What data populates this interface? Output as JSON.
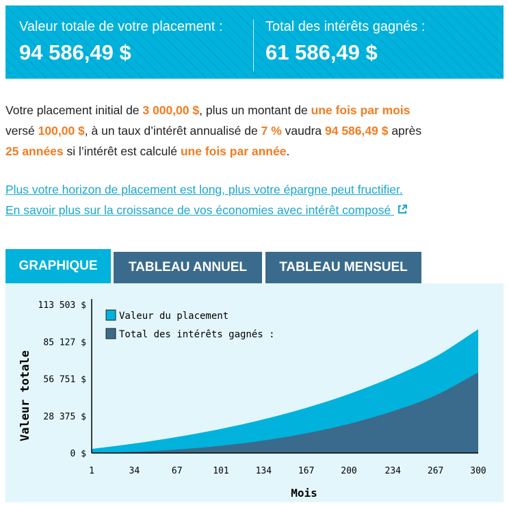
{
  "summary": {
    "total_label": "Valeur totale de votre placement :",
    "total_value": "94 586,49 $",
    "interest_label": "Total des intérêts gagnés :",
    "interest_value": "61 586,49 $"
  },
  "description": {
    "t1": "Votre placement initial de ",
    "initial": "3 000,00 $",
    "t2": ", plus un montant de ",
    "frequency": "une fois par mois",
    "t3": " versé ",
    "deposit": "100,00 $",
    "t4": ", à un taux d’intérêt annualisé de ",
    "rate": "7 %",
    "t5": " vaudra ",
    "final": "94 586,49 $",
    "t6": " après ",
    "years": "25 années",
    "t7": " si l’intérêt est calculé ",
    "compounding": "une fois par année",
    "t8": "."
  },
  "links": {
    "horizon": "Plus votre horizon de placement est long, plus votre épargne peut fructifier.",
    "learn_more": "En savoir plus sur la croissance de vos économies avec intérêt composé"
  },
  "tabs": [
    {
      "label": "GRAPHIQUE",
      "active": true
    },
    {
      "label": "TABLEAU ANNUEL",
      "active": false
    },
    {
      "label": "TABLEAU MENSUEL",
      "active": false
    }
  ],
  "colors": {
    "accent": "#00b2dc",
    "dark": "#3a6b8c",
    "highlight": "#f47b20",
    "panel": "#e3f6fb"
  },
  "chart_data": {
    "type": "area",
    "xlabel": "Mois",
    "ylabel": "Valeur totale",
    "x_ticks": [
      "1",
      "34",
      "67",
      "101",
      "134",
      "167",
      "200",
      "234",
      "267",
      "300"
    ],
    "y_ticks": [
      "0 $",
      "28 375 $",
      "56 751 $",
      "85 127 $",
      "113 503 $"
    ],
    "ylim": [
      0,
      113503
    ],
    "xlim": [
      1,
      300
    ],
    "legend_position": "top-left",
    "x": [
      1,
      34,
      67,
      101,
      134,
      167,
      200,
      234,
      267,
      300
    ],
    "series": [
      {
        "name": "Valeur du placement",
        "color": "#00b2dc",
        "values": [
          3100,
          7250,
          12250,
          18470,
          25760,
          34540,
          45060,
          58210,
          73600,
          94586.49
        ]
      },
      {
        "name": "Total des intérêts gagnés :",
        "color": "#3a6b8c",
        "values": [
          0,
          950,
          2650,
          5570,
          9560,
          15040,
          22260,
          31910,
          44000,
          61586.49
        ]
      }
    ]
  }
}
